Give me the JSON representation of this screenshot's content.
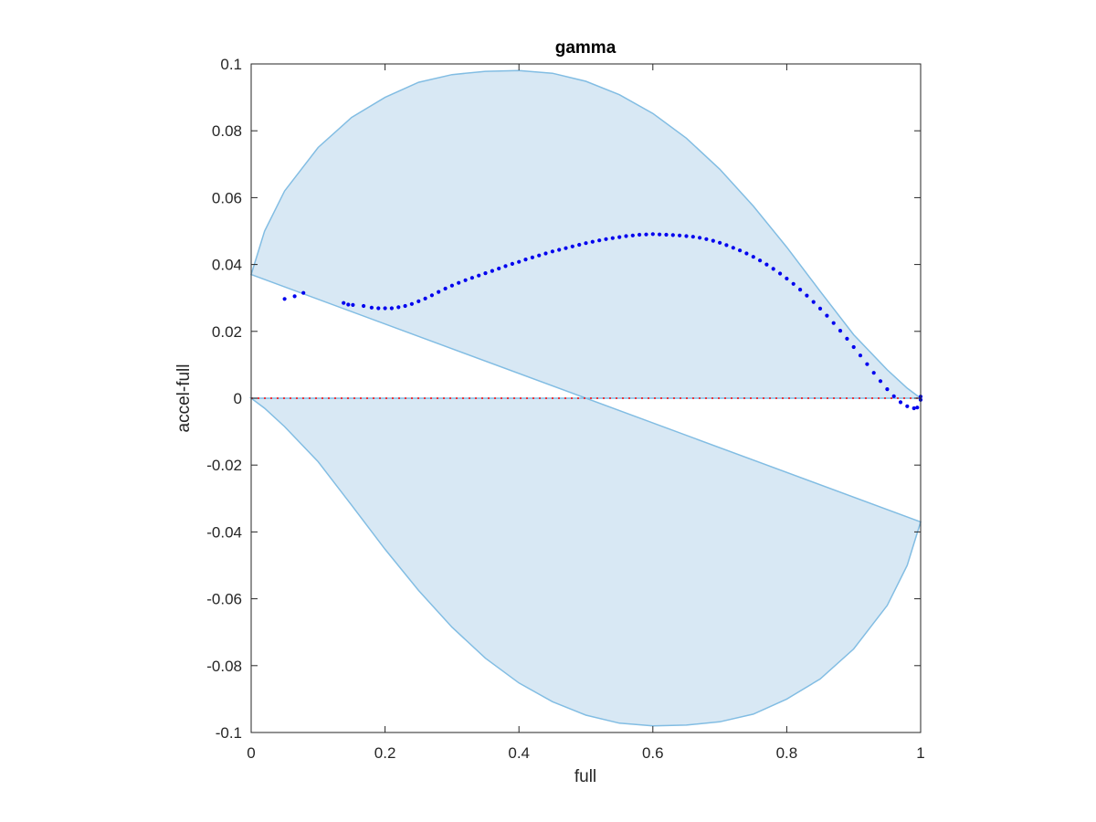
{
  "chart_data": {
    "type": "scatter",
    "title": "gamma",
    "xlabel": "full",
    "ylabel": "accel-full",
    "xlim": [
      0,
      1
    ],
    "ylim": [
      -0.1,
      0.1
    ],
    "xticks": [
      0,
      0.2,
      0.4,
      0.6,
      0.8,
      1
    ],
    "xtick_labels": [
      "0",
      "0.2",
      "0.4",
      "0.6",
      "0.8",
      "1"
    ],
    "yticks": [
      0.1,
      0.08,
      0.06,
      0.04,
      0.02,
      0,
      -0.02,
      -0.04,
      -0.06,
      -0.08,
      -0.1
    ],
    "ytick_labels": [
      "0.1",
      "0.08",
      "0.06",
      "0.04",
      "0.02",
      "0",
      "-0.02",
      "-0.04",
      "-0.06",
      "-0.08",
      "-0.1"
    ],
    "grid": false,
    "zero_line": {
      "y": 0,
      "color": "#ff0000",
      "style": "dotted"
    },
    "region": {
      "fill": "#d8e8f4",
      "edge": "#82bde3",
      "upper_boundary": [
        [
          0,
          0.037
        ],
        [
          0.02,
          0.05
        ],
        [
          0.05,
          0.062
        ],
        [
          0.1,
          0.075
        ],
        [
          0.15,
          0.084
        ],
        [
          0.2,
          0.09
        ],
        [
          0.25,
          0.0945
        ],
        [
          0.3,
          0.0968
        ],
        [
          0.35,
          0.0978
        ],
        [
          0.4,
          0.098
        ],
        [
          0.45,
          0.0972
        ],
        [
          0.5,
          0.0948
        ],
        [
          0.55,
          0.0908
        ],
        [
          0.6,
          0.0852
        ],
        [
          0.65,
          0.0778
        ],
        [
          0.7,
          0.0685
        ],
        [
          0.75,
          0.0575
        ],
        [
          0.8,
          0.0452
        ],
        [
          0.85,
          0.032
        ],
        [
          0.9,
          0.019
        ],
        [
          0.95,
          0.0085
        ],
        [
          0.98,
          0.003
        ],
        [
          1,
          0
        ]
      ],
      "lower_boundary": [
        [
          0,
          0
        ],
        [
          0.02,
          -0.003
        ],
        [
          0.05,
          -0.0085
        ],
        [
          0.1,
          -0.019
        ],
        [
          0.15,
          -0.032
        ],
        [
          0.2,
          -0.0452
        ],
        [
          0.25,
          -0.0575
        ],
        [
          0.3,
          -0.0685
        ],
        [
          0.35,
          -0.0778
        ],
        [
          0.4,
          -0.0852
        ],
        [
          0.45,
          -0.0908
        ],
        [
          0.5,
          -0.0948
        ],
        [
          0.55,
          -0.0972
        ],
        [
          0.6,
          -0.098
        ],
        [
          0.65,
          -0.0978
        ],
        [
          0.7,
          -0.0968
        ],
        [
          0.75,
          -0.0945
        ],
        [
          0.8,
          -0.09
        ],
        [
          0.85,
          -0.084
        ],
        [
          0.9,
          -0.075
        ],
        [
          0.95,
          -0.062
        ],
        [
          0.98,
          -0.05
        ],
        [
          1,
          -0.037
        ]
      ]
    },
    "series": [
      {
        "color": "#0000ee",
        "points": [
          [
            0.05,
            0.0297
          ],
          [
            0.065,
            0.0305
          ],
          [
            0.078,
            0.0315
          ],
          [
            0.138,
            0.0285
          ],
          [
            0.145,
            0.028
          ],
          [
            0.152,
            0.0279
          ],
          [
            0.168,
            0.0276
          ],
          [
            0.18,
            0.0271
          ],
          [
            0.19,
            0.0269
          ],
          [
            0.2,
            0.0269
          ],
          [
            0.21,
            0.0269
          ],
          [
            0.22,
            0.0272
          ],
          [
            0.23,
            0.0276
          ],
          [
            0.24,
            0.0282
          ],
          [
            0.25,
            0.029
          ],
          [
            0.26,
            0.0298
          ],
          [
            0.27,
            0.0308
          ],
          [
            0.28,
            0.0318
          ],
          [
            0.29,
            0.0328
          ],
          [
            0.3,
            0.0337
          ],
          [
            0.31,
            0.0345
          ],
          [
            0.32,
            0.0353
          ],
          [
            0.33,
            0.036
          ],
          [
            0.34,
            0.0367
          ],
          [
            0.35,
            0.0374
          ],
          [
            0.36,
            0.0381
          ],
          [
            0.37,
            0.0388
          ],
          [
            0.38,
            0.0395
          ],
          [
            0.39,
            0.0402
          ],
          [
            0.4,
            0.0408
          ],
          [
            0.41,
            0.0415
          ],
          [
            0.42,
            0.0421
          ],
          [
            0.43,
            0.0427
          ],
          [
            0.44,
            0.0433
          ],
          [
            0.45,
            0.0439
          ],
          [
            0.46,
            0.0444
          ],
          [
            0.47,
            0.0449
          ],
          [
            0.48,
            0.0454
          ],
          [
            0.49,
            0.0459
          ],
          [
            0.5,
            0.0464
          ],
          [
            0.51,
            0.0468
          ],
          [
            0.52,
            0.0472
          ],
          [
            0.53,
            0.0476
          ],
          [
            0.54,
            0.0479
          ],
          [
            0.55,
            0.0482
          ],
          [
            0.56,
            0.0485
          ],
          [
            0.57,
            0.0487
          ],
          [
            0.58,
            0.0489
          ],
          [
            0.59,
            0.049
          ],
          [
            0.6,
            0.0491
          ],
          [
            0.61,
            0.049
          ],
          [
            0.62,
            0.0489
          ],
          [
            0.63,
            0.0488
          ],
          [
            0.64,
            0.0487
          ],
          [
            0.65,
            0.0485
          ],
          [
            0.66,
            0.0483
          ],
          [
            0.67,
            0.048
          ],
          [
            0.68,
            0.0476
          ],
          [
            0.69,
            0.0471
          ],
          [
            0.7,
            0.0465
          ],
          [
            0.71,
            0.0458
          ],
          [
            0.72,
            0.045
          ],
          [
            0.73,
            0.0442
          ],
          [
            0.74,
            0.0433
          ],
          [
            0.75,
            0.0423
          ],
          [
            0.76,
            0.0412
          ],
          [
            0.77,
            0.04
          ],
          [
            0.78,
            0.0387
          ],
          [
            0.79,
            0.0373
          ],
          [
            0.8,
            0.0358
          ],
          [
            0.81,
            0.0342
          ],
          [
            0.82,
            0.0325
          ],
          [
            0.83,
            0.0307
          ],
          [
            0.84,
            0.0288
          ],
          [
            0.85,
            0.0268
          ],
          [
            0.86,
            0.0247
          ],
          [
            0.87,
            0.0225
          ],
          [
            0.88,
            0.0202
          ],
          [
            0.89,
            0.0178
          ],
          [
            0.9,
            0.0153
          ],
          [
            0.91,
            0.0128
          ],
          [
            0.92,
            0.0102
          ],
          [
            0.93,
            0.0076
          ],
          [
            0.94,
            0.0051
          ],
          [
            0.95,
            0.0027
          ],
          [
            0.96,
            0.0006
          ],
          [
            0.97,
            -0.0012
          ],
          [
            0.98,
            -0.0024
          ],
          [
            0.99,
            -0.003
          ],
          [
            0.995,
            -0.0028
          ],
          [
            1,
            -0.0005
          ],
          [
            1,
            0.0005
          ]
        ]
      }
    ]
  }
}
